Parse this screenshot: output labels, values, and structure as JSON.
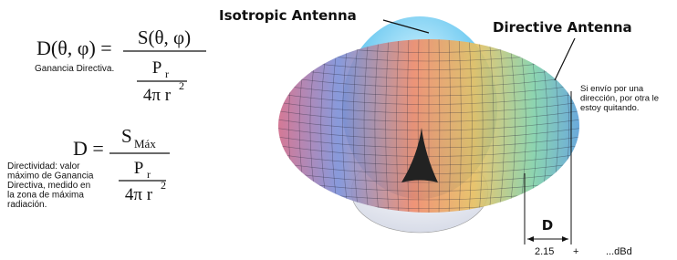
{
  "formula_gain": {
    "lhs": "D(θ, φ) =",
    "numerator": "S(θ, φ)",
    "power": "P",
    "power_sub": "r",
    "area": "4π r",
    "area_exp": "2",
    "label": "Ganancia Directiva."
  },
  "formula_directivity": {
    "lhs": "D =",
    "numerator": "S",
    "numerator_sub": "Máx",
    "power": "P",
    "power_sub": "r",
    "area": "4π r",
    "area_exp": "2",
    "label_lines": [
      "Directividad: valor",
      "máximo de Ganancia",
      "Directiva, medido en",
      "la zona de máxima",
      "radiación."
    ]
  },
  "labels": {
    "isotropic": "Isotropic Antenna",
    "directive": "Directive Antenna",
    "note_lines": [
      "Si envío por una",
      "dirección, por otra le",
      "estoy quitando."
    ]
  },
  "dimension": {
    "label": "D",
    "value": "2.15",
    "plus": "+",
    "unit": "...dBd"
  }
}
